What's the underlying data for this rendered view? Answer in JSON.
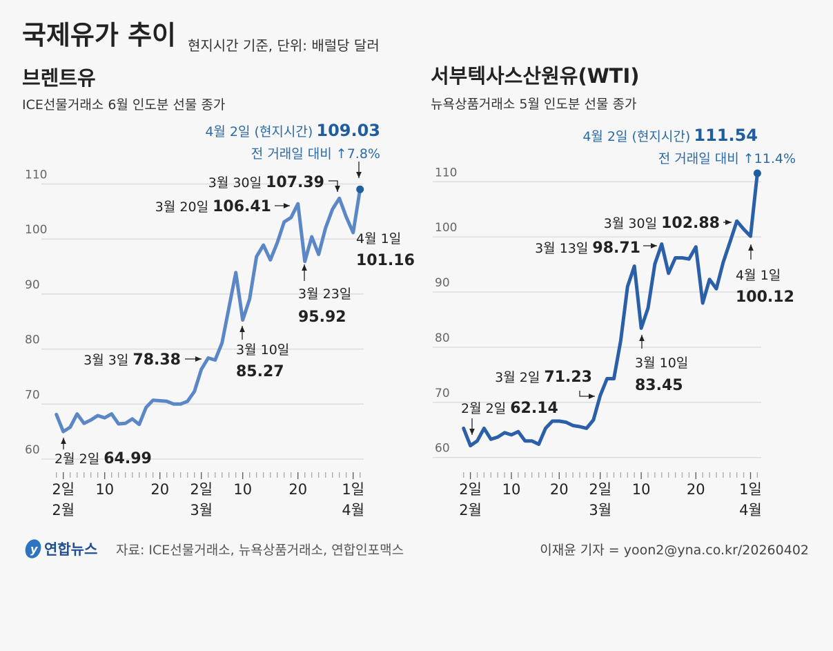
{
  "header": {
    "title": "국제유가 추이",
    "subtitle": "현지시간 기준, 단위: 배럴당 달러"
  },
  "footer": {
    "logo_text": "연합뉴스",
    "source": "자료: ICE선물거래소, 뉴욕상품거래소, 연합인포맥스",
    "credit": "이재윤 기자 = yoon2@yna.co.kr/20260402"
  },
  "colors": {
    "brent": "#5b87c6",
    "wti": "#2b5fa8",
    "highlight": "#1f5d9c",
    "grid": "#dddddd"
  },
  "chart_data": [
    {
      "type": "line",
      "title": "브렌트유",
      "subtitle": "ICE선물거래소 6월 인도분 선물 종가",
      "ylim": [
        60,
        110
      ],
      "yticks": [
        "60",
        "70",
        "80",
        "90",
        "100",
        "110"
      ],
      "grid": true,
      "xtick_labels": [
        {
          "date": "02-02",
          "day": "2일",
          "month": "2월"
        },
        {
          "date": "02-10",
          "day": "10"
        },
        {
          "date": "02-20",
          "day": "20"
        },
        {
          "date": "03-02",
          "day": "2일",
          "month": "3월"
        },
        {
          "date": "03-10",
          "day": "10"
        },
        {
          "date": "03-20",
          "day": "20"
        },
        {
          "date": "04-01",
          "day": "1일",
          "month": "4월"
        }
      ],
      "x": [
        "01-30",
        "02-02",
        "02-03",
        "02-04",
        "02-05",
        "02-06",
        "02-09",
        "02-10",
        "02-11",
        "02-12",
        "02-13",
        "02-16",
        "02-17",
        "02-18",
        "02-19",
        "02-20",
        "02-23",
        "02-24",
        "02-25",
        "02-26",
        "02-27",
        "03-02",
        "03-03",
        "03-04",
        "03-05",
        "03-06",
        "03-09",
        "03-10",
        "03-11",
        "03-12",
        "03-13",
        "03-16",
        "03-17",
        "03-18",
        "03-19",
        "03-20",
        "03-23",
        "03-24",
        "03-25",
        "03-26",
        "03-27",
        "03-30",
        "03-31",
        "04-01",
        "04-02"
      ],
      "values": [
        68.1,
        64.99,
        65.8,
        68.2,
        66.5,
        67.1,
        67.9,
        67.5,
        68.2,
        66.4,
        66.5,
        67.3,
        66.3,
        69.4,
        70.7,
        70.6,
        70.5,
        70.0,
        70.0,
        70.5,
        72.3,
        76.3,
        78.38,
        78.0,
        81.1,
        87.5,
        93.9,
        85.27,
        89.1,
        96.8,
        98.9,
        96.2,
        99.3,
        103.1,
        103.9,
        106.41,
        95.92,
        100.4,
        97.2,
        102.0,
        105.4,
        107.39,
        104.0,
        101.16,
        109.03
      ],
      "headline": {
        "date": "4월 2일 (현지시간)",
        "value": "109.03",
        "change": "전 거래일 대비 ↑7.8%"
      },
      "annotations": [
        {
          "date": "3월 30일",
          "value": "107.39"
        },
        {
          "date": "3월 20일",
          "value": "106.41"
        },
        {
          "date": "4월 1일",
          "value": "101.16"
        },
        {
          "date": "3월 23일",
          "value": "95.92"
        },
        {
          "date": "3월 10일",
          "value": "85.27"
        },
        {
          "date": "3월 3일",
          "value": "78.38"
        },
        {
          "date": "2월 2일",
          "value": "64.99"
        }
      ]
    },
    {
      "type": "line",
      "title": "서부텍사스산원유(WTI)",
      "subtitle": "뉴욕상품거래소 5월 인도분 선물 종가",
      "ylim": [
        60,
        110
      ],
      "yticks": [
        "60",
        "70",
        "80",
        "90",
        "100",
        "110"
      ],
      "grid": true,
      "xtick_labels": [
        {
          "date": "02-02",
          "day": "2일",
          "month": "2월"
        },
        {
          "date": "02-10",
          "day": "10"
        },
        {
          "date": "02-20",
          "day": "20"
        },
        {
          "date": "03-02",
          "day": "2일",
          "month": "3월"
        },
        {
          "date": "03-10",
          "day": "10"
        },
        {
          "date": "03-20",
          "day": "20"
        },
        {
          "date": "04-01",
          "day": "1일",
          "month": "4월"
        }
      ],
      "x": [
        "01-30",
        "02-02",
        "02-03",
        "02-04",
        "02-05",
        "02-06",
        "02-09",
        "02-10",
        "02-11",
        "02-12",
        "02-13",
        "02-17",
        "02-18",
        "02-19",
        "02-20",
        "02-23",
        "02-24",
        "02-25",
        "02-26",
        "02-27",
        "03-02",
        "03-03",
        "03-04",
        "03-05",
        "03-06",
        "03-09",
        "03-10",
        "03-11",
        "03-12",
        "03-13",
        "03-16",
        "03-17",
        "03-18",
        "03-19",
        "03-20",
        "03-23",
        "03-24",
        "03-25",
        "03-26",
        "03-27",
        "03-30",
        "03-31",
        "04-01",
        "04-02"
      ],
      "values": [
        65.3,
        62.14,
        63.0,
        65.3,
        63.3,
        63.7,
        64.5,
        64.1,
        64.7,
        63.0,
        63.0,
        62.4,
        65.3,
        66.6,
        66.6,
        66.4,
        65.8,
        65.6,
        65.3,
        66.8,
        71.23,
        74.3,
        74.3,
        81.2,
        91.0,
        94.7,
        83.45,
        87.1,
        95.1,
        98.71,
        93.4,
        96.2,
        96.2,
        96.0,
        98.2,
        88.0,
        92.3,
        90.6,
        95.4,
        99.1,
        102.88,
        101.4,
        100.12,
        111.54
      ],
      "headline": {
        "date": "4월 2일 (현지시간)",
        "value": "111.54",
        "change": "전 거래일 대비 ↑11.4%"
      },
      "annotations": [
        {
          "date": "3월 30일",
          "value": "102.88"
        },
        {
          "date": "3월 13일",
          "value": "98.71"
        },
        {
          "date": "4월 1일",
          "value": "100.12"
        },
        {
          "date": "3월 10일",
          "value": "83.45"
        },
        {
          "date": "3월 2일",
          "value": "71.23"
        },
        {
          "date": "2월 2일",
          "value": "62.14"
        }
      ]
    }
  ]
}
